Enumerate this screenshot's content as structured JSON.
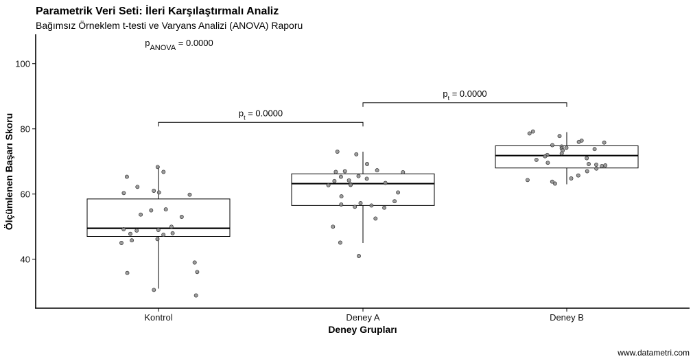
{
  "chart_data": {
    "type": "boxplot",
    "title": "Parametrik Veri Seti: İleri Karşılaştırmalı Analiz",
    "subtitle": "Bağımsız Örneklem t-testi ve Varyans Analizi (ANOVA) Raporu",
    "xlabel": "Deney Grupları",
    "ylabel": "Ölçümlenen Başarı Skoru",
    "ylim": [
      25,
      109
    ],
    "yticks": [
      40,
      60,
      80,
      100
    ],
    "grid": false,
    "categories": [
      "Kontrol",
      "Deney A",
      "Deney B"
    ],
    "boxes": [
      {
        "name": "Kontrol",
        "whisker_low": 31,
        "q1": 47,
        "median": 49.5,
        "q3": 58.5,
        "whisker_high": 68.5
      },
      {
        "name": "Deney A",
        "whisker_low": 45,
        "q1": 56.5,
        "median": 63.2,
        "q3": 66.2,
        "whisker_high": 73
      },
      {
        "name": "Deney B",
        "whisker_low": 63,
        "q1": 68,
        "median": 71.8,
        "q3": 74.8,
        "whisker_high": 79
      }
    ],
    "points": [
      {
        "group": "Kontrol",
        "values": [
          68.3,
          66.8,
          65.3,
          62.2,
          61.0,
          60.5,
          60.3,
          59.8,
          55.3,
          55.0,
          53.7,
          53.0,
          50.0,
          49.2,
          49.0,
          48.8,
          48.0,
          47.8,
          47.5,
          46.2,
          45.8,
          45.0,
          39.0,
          36.1,
          35.8,
          30.6,
          28.9
        ]
      },
      {
        "group": "Deney A",
        "values": [
          73.0,
          72.2,
          69.2,
          67.3,
          67.0,
          66.8,
          66.7,
          65.5,
          65.3,
          64.7,
          64.2,
          64.0,
          63.4,
          63.0,
          62.8,
          62.7,
          60.5,
          59.3,
          57.8,
          57.2,
          56.8,
          56.5,
          56.1,
          55.8,
          52.5,
          50.0,
          45.1,
          41.0
        ]
      },
      {
        "group": "Deney B",
        "values": [
          79.2,
          78.6,
          77.8,
          76.4,
          76.0,
          75.8,
          75.0,
          74.6,
          74.2,
          74.0,
          73.8,
          73.4,
          72.5,
          72.0,
          71.6,
          71.0,
          70.5,
          69.6,
          69.2,
          69.0,
          68.8,
          68.6,
          67.8,
          67.0,
          65.7,
          64.8,
          64.3,
          63.8,
          63.2
        ]
      }
    ],
    "annotations": {
      "anova": {
        "label": "p",
        "subscript": "ANOVA",
        "value": "= 0.0000"
      },
      "comparisons": [
        {
          "from": "Kontrol",
          "to": "Deney A",
          "y": 82,
          "label": "p",
          "subscript": "t",
          "value": "= 0.0000"
        },
        {
          "from": "Deney A",
          "to": "Deney B",
          "y": 88,
          "label": "p",
          "subscript": "t",
          "value": "= 0.0000"
        }
      ]
    },
    "caption": "www.datametri.com",
    "colors": {
      "box_stroke": "#000000",
      "box_fill": "#ffffff",
      "point_fill": "#8c8c8c",
      "point_stroke": "#333333"
    }
  }
}
